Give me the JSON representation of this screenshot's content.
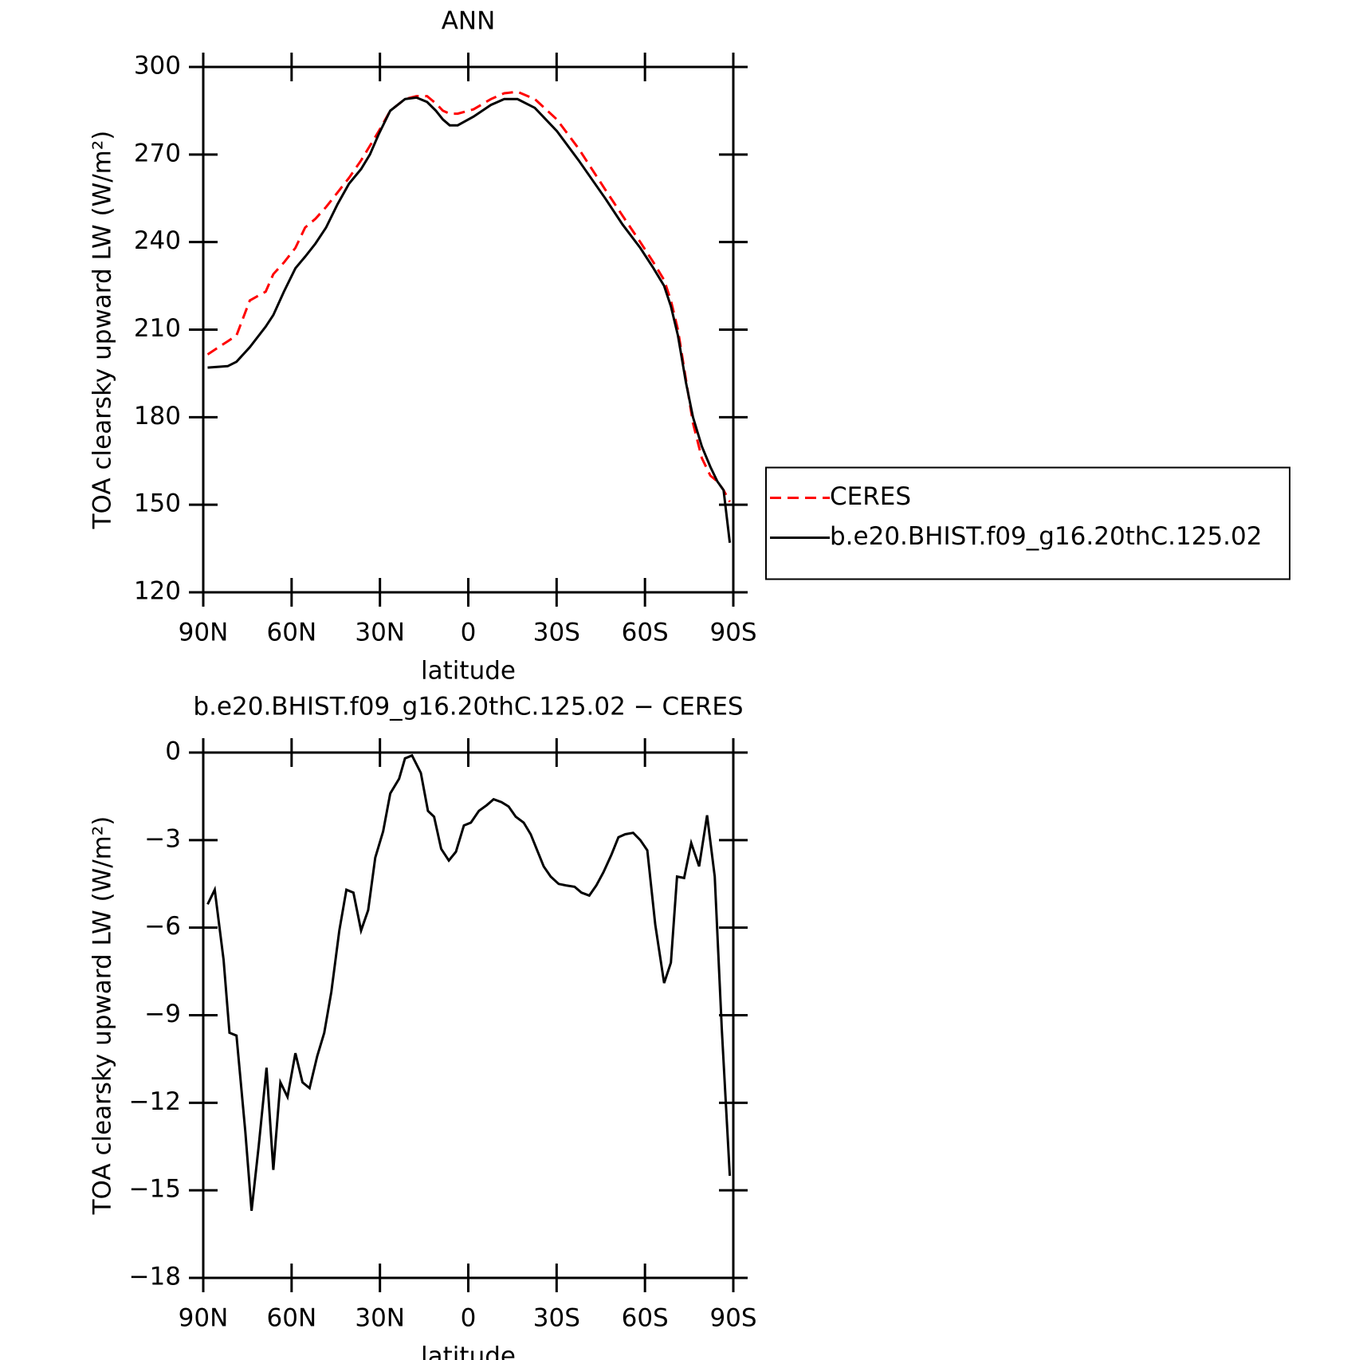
{
  "chart_data": [
    {
      "type": "line",
      "title": "ANN",
      "xlabel": "latitude",
      "ylabel": "TOA clearsky upward LW (W/m²)",
      "xlim": [
        90,
        -90
      ],
      "xticks": [
        {
          "value": 90,
          "label": "90N"
        },
        {
          "value": 60,
          "label": "60N"
        },
        {
          "value": 30,
          "label": "30N"
        },
        0,
        {
          "value": -30,
          "label": "30S"
        },
        {
          "value": -60,
          "label": "60S"
        },
        {
          "value": -90,
          "label": "90S"
        }
      ],
      "ylim": [
        120,
        300
      ],
      "yticks": [
        120,
        150,
        180,
        210,
        240,
        270,
        300
      ],
      "legend": "right",
      "x": [
        88.5,
        81.7,
        78.7,
        74.2,
        68.8,
        66.2,
        62.6,
        58.7,
        55.4,
        51.9,
        48.3,
        44.4,
        40.5,
        36.4,
        33.4,
        30.4,
        26.5,
        21.5,
        17.6,
        14.0,
        11.0,
        8.6,
        6.3,
        3.6,
        -1.8,
        -7.7,
        -12.2,
        -16.7,
        -22.6,
        -30.1,
        -37.5,
        -46.5,
        -52.4,
        -58.4,
        -62.9,
        -66.5,
        -68.8,
        -71.2,
        -73.9,
        -76.3,
        -79.3,
        -82.2,
        -84.6,
        -86.7,
        -88.8
      ],
      "series": [
        {
          "name": "CERES",
          "color": "#ff0000",
          "linestyle": "dashed",
          "values": [
            201.5,
            206,
            208,
            220,
            223,
            229,
            233,
            238,
            245,
            248,
            252,
            257,
            262,
            268,
            273,
            278,
            285,
            289,
            290,
            290,
            287.5,
            285,
            284,
            284,
            285.5,
            289,
            291,
            291.5,
            289,
            282,
            272,
            258,
            249,
            240,
            233,
            227,
            220,
            210,
            193,
            178,
            166,
            160,
            158,
            155,
            151
          ]
        },
        {
          "name": "b.e20.BHIST.f09_g16.20thC.125.02",
          "color": "#000000",
          "linestyle": "solid",
          "values": [
            197,
            197.5,
            199,
            204,
            211,
            215,
            223,
            231,
            235,
            239.5,
            245,
            253,
            260,
            265,
            270,
            277,
            285,
            289,
            289.5,
            288,
            285,
            282,
            280,
            280,
            283,
            287,
            289,
            289,
            286,
            278,
            268,
            255,
            246,
            238,
            231,
            225,
            218,
            208,
            192,
            180,
            170,
            163,
            158,
            155,
            137
          ]
        }
      ]
    },
    {
      "type": "line",
      "title": "b.e20.BHIST.f09_g16.20thC.125.02 − CERES",
      "xlabel": "latitude",
      "ylabel": "TOA clearsky upward LW (W/m²)",
      "xlim": [
        90,
        -90
      ],
      "xticks": [
        {
          "value": 90,
          "label": "90N"
        },
        {
          "value": 60,
          "label": "60N"
        },
        {
          "value": 30,
          "label": "30N"
        },
        0,
        {
          "value": -30,
          "label": "30S"
        },
        {
          "value": -60,
          "label": "60S"
        },
        {
          "value": -90,
          "label": "90S"
        }
      ],
      "ylim": [
        -18,
        0
      ],
      "yticks": [
        {
          "value": -18,
          "label": "−18"
        },
        {
          "value": -15,
          "label": "−15"
        },
        {
          "value": -12,
          "label": "−12"
        },
        {
          "value": -9,
          "label": "−9"
        },
        {
          "value": -6,
          "label": "−6"
        },
        {
          "value": -3,
          "label": "−3"
        },
        0
      ],
      "x": [
        88.5,
        86.1,
        83.1,
        81.1,
        78.7,
        75.7,
        73.6,
        71.2,
        68.5,
        66.2,
        63.8,
        61.4,
        58.7,
        56.3,
        53.9,
        51.3,
        48.9,
        46.5,
        43.8,
        41.4,
        39.0,
        36.4,
        34.0,
        31.6,
        28.9,
        26.5,
        23.5,
        21.5,
        19.1,
        16.1,
        13.7,
        11.6,
        9.2,
        6.6,
        4.2,
        1.5,
        -0.9,
        -3.6,
        -6.3,
        -8.6,
        -11.3,
        -13.7,
        -16.1,
        -18.8,
        -21.2,
        -23.2,
        -25.6,
        -28.0,
        -30.7,
        -33.1,
        -36.1,
        -38.4,
        -41.1,
        -43.5,
        -45.9,
        -48.6,
        -51.0,
        -53.3,
        -56.0,
        -58.4,
        -60.8,
        -63.5,
        -66.5,
        -68.8,
        -70.9,
        -73.3,
        -75.7,
        -78.4,
        -81.1,
        -83.7,
        -86.1,
        -88.8
      ],
      "series": [
        {
          "color": "#000000",
          "linestyle": "solid",
          "values": [
            -5.2,
            -4.7,
            -7.1,
            -9.6,
            -9.7,
            -13.0,
            -15.7,
            -13.5,
            -10.8,
            -14.3,
            -11.3,
            -11.8,
            -10.3,
            -11.3,
            -11.5,
            -10.4,
            -9.6,
            -8.2,
            -6.1,
            -4.7,
            -4.8,
            -6.1,
            -5.4,
            -3.6,
            -2.7,
            -1.4,
            -0.9,
            -0.2,
            -0.1,
            -0.7,
            -2.0,
            -2.2,
            -3.3,
            -3.7,
            -3.4,
            -2.5,
            -2.4,
            -2.0,
            -1.8,
            -1.6,
            -1.7,
            -1.85,
            -2.2,
            -2.4,
            -2.8,
            -3.3,
            -3.9,
            -4.25,
            -4.5,
            -4.55,
            -4.6,
            -4.8,
            -4.9,
            -4.55,
            -4.1,
            -3.5,
            -2.9,
            -2.8,
            -2.75,
            -3.0,
            -3.35,
            -5.9,
            -7.9,
            -7.2,
            -4.25,
            -4.3,
            -3.1,
            -3.9,
            -2.15,
            -4.25,
            -9.5,
            -14.5
          ]
        }
      ]
    }
  ]
}
